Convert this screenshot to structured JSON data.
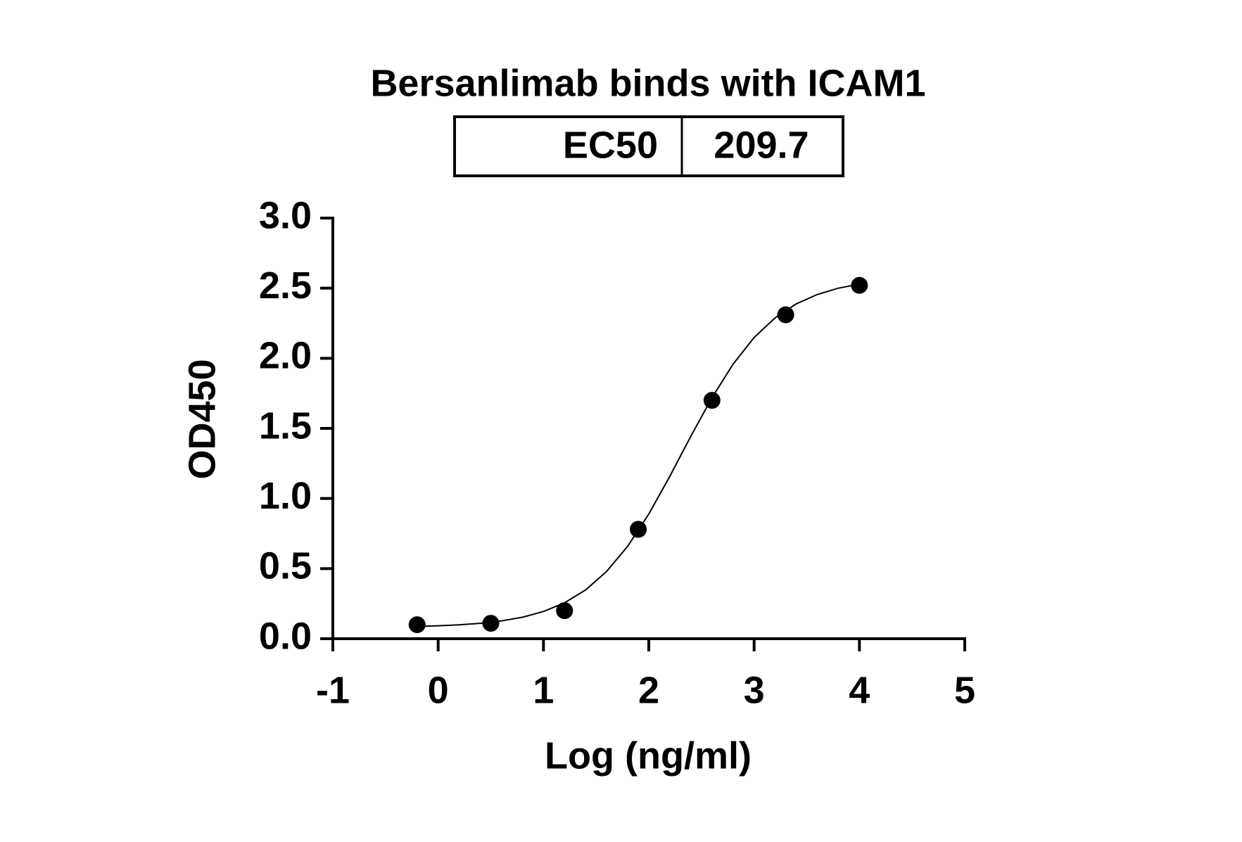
{
  "chart_data": {
    "type": "scatter",
    "title": "Bersanlimab binds with ICAM1",
    "ec50_table": {
      "label": "EC50",
      "value": 209.7
    },
    "xlabel": "Log (ng/ml)",
    "ylabel": "OD450",
    "x": [
      -0.2,
      0.5,
      1.2,
      1.9,
      2.6,
      3.3,
      4.0
    ],
    "values": [
      0.1,
      0.11,
      0.2,
      0.78,
      1.7,
      2.31,
      2.52
    ],
    "fit": {
      "x": [
        -0.2,
        0.0,
        0.2,
        0.4,
        0.6,
        0.8,
        1.0,
        1.2,
        1.4,
        1.6,
        1.8,
        2.0,
        2.2,
        2.4,
        2.6,
        2.8,
        3.0,
        3.2,
        3.4,
        3.6,
        3.8,
        4.0
      ],
      "values": [
        0.088,
        0.092,
        0.099,
        0.11,
        0.127,
        0.153,
        0.194,
        0.256,
        0.348,
        0.48,
        0.66,
        0.889,
        1.159,
        1.445,
        1.719,
        1.958,
        2.148,
        2.289,
        2.388,
        2.455,
        2.5,
        2.529
      ]
    },
    "color": "#000000",
    "xlim": [
      -1,
      5
    ],
    "xticks": [
      -1,
      0,
      1,
      2,
      3,
      4,
      5
    ],
    "ylim": [
      0,
      3
    ],
    "yticks": [
      {
        "value": 0,
        "label": "0.0"
      },
      0.5,
      {
        "value": 1,
        "label": "1.0"
      },
      1.5,
      {
        "value": 2,
        "label": "2.0"
      },
      2.5,
      {
        "value": 3,
        "label": "3.0"
      }
    ]
  }
}
